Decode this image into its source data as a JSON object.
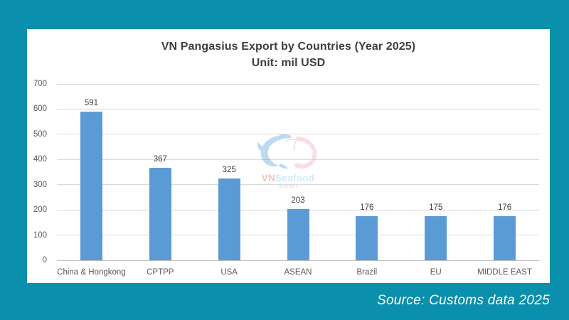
{
  "page": {
    "background_color": "#0a8fac"
  },
  "chart": {
    "title_line1": "VN Pangasius Export by Countries (Year 2025)",
    "title_line2": "Unit: mil USD"
  },
  "watermark": {
    "brand_vn": "VN",
    "brand_seafood": "Seafood",
    "tagline": "Insider"
  },
  "footer": {
    "source": "Source: Customs data 2025"
  },
  "chart_data": {
    "type": "bar",
    "title": "VN Pangasius Export by Countries (Year 2025)",
    "subtitle": "Unit: mil USD",
    "categories": [
      "China & Hongkong",
      "CPTPP",
      "USA",
      "ASEAN",
      "Brazil",
      "EU",
      "MIDDLE EAST"
    ],
    "values": [
      591,
      367,
      325,
      203,
      176,
      175,
      176
    ],
    "xlabel": "",
    "ylabel": "",
    "ylim": [
      0,
      700
    ],
    "yticks": [
      0,
      100,
      200,
      300,
      400,
      500,
      600,
      700
    ],
    "grid": true,
    "legend": "none",
    "bar_color": "#5B9BD5",
    "gridline_color": "#D9D9D9",
    "axisline_color": "#BFBFBF",
    "value_label_color": "#404040",
    "tick_label_color": "#595959"
  }
}
